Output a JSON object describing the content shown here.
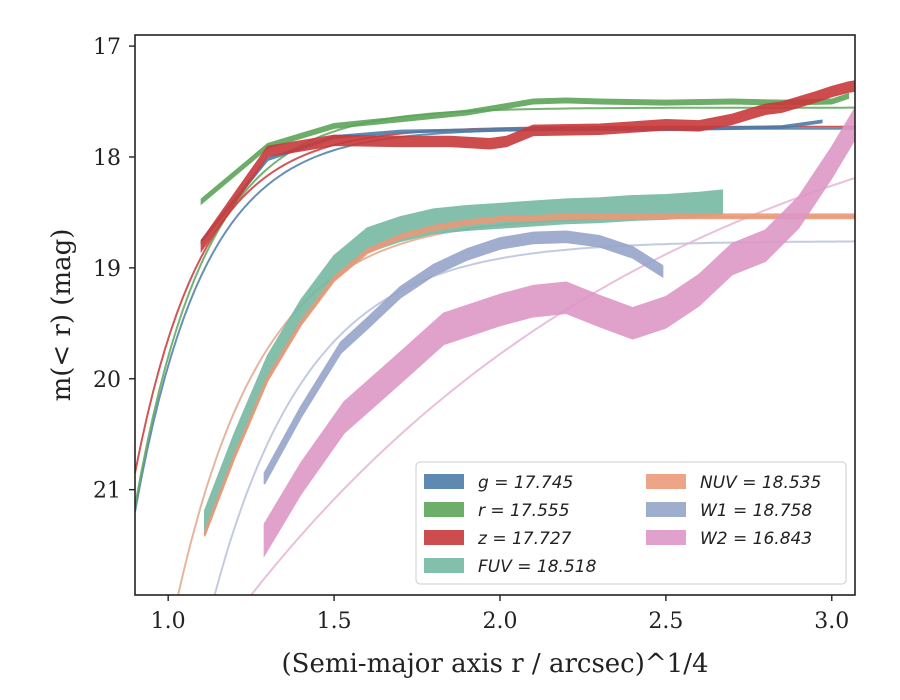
{
  "chart_data": {
    "type": "line",
    "xlabel": "(Semi-major axis r / arcsec)^1/4",
    "ylabel": "m(< r) (mag)",
    "xlim": [
      0.9,
      3.07
    ],
    "ylim": [
      21.95,
      16.9
    ],
    "y_inverted": true,
    "x_ticks": [
      "1.0",
      "1.5",
      "2.0",
      "2.5",
      "3.0"
    ],
    "x_tick_values": [
      1.0,
      1.5,
      2.0,
      2.5,
      3.0
    ],
    "y_ticks": [
      "17",
      "18",
      "19",
      "20",
      "21"
    ],
    "y_tick_values": [
      17,
      18,
      19,
      20,
      21
    ],
    "grid": false,
    "legend_position": "lower-right",
    "series": [
      {
        "name": "g = 17.745",
        "color": "#4c7ca8",
        "data": [
          [
            1.1,
            18.76
          ],
          [
            1.3,
            18.02
          ],
          [
            1.5,
            17.82
          ],
          [
            1.7,
            17.77
          ],
          [
            1.9,
            17.76
          ],
          [
            2.1,
            17.75
          ],
          [
            2.3,
            17.75
          ],
          [
            2.5,
            17.75
          ],
          [
            2.7,
            17.74
          ],
          [
            2.85,
            17.73
          ],
          [
            2.97,
            17.68
          ]
        ],
        "band_width": 0.02
      },
      {
        "name": "r = 17.555",
        "color": "#5da55a",
        "data": [
          [
            1.1,
            18.4
          ],
          [
            1.3,
            17.9
          ],
          [
            1.5,
            17.72
          ],
          [
            1.7,
            17.66
          ],
          [
            1.9,
            17.6
          ],
          [
            2.0,
            17.55
          ],
          [
            2.1,
            17.5
          ],
          [
            2.2,
            17.49
          ],
          [
            2.3,
            17.5
          ],
          [
            2.5,
            17.51
          ],
          [
            2.7,
            17.5
          ],
          [
            2.85,
            17.51
          ],
          [
            3.0,
            17.5
          ],
          [
            3.05,
            17.45
          ]
        ],
        "band_width": 0.04
      },
      {
        "name": "z = 17.727",
        "color": "#c83a3b",
        "data": [
          [
            1.1,
            18.8
          ],
          [
            1.3,
            17.95
          ],
          [
            1.5,
            17.85
          ],
          [
            1.7,
            17.86
          ],
          [
            1.85,
            17.86
          ],
          [
            1.97,
            17.88
          ],
          [
            2.02,
            17.86
          ],
          [
            2.1,
            17.76
          ],
          [
            2.3,
            17.75
          ],
          [
            2.5,
            17.71
          ],
          [
            2.6,
            17.72
          ],
          [
            2.7,
            17.66
          ],
          [
            2.8,
            17.57
          ],
          [
            2.85,
            17.55
          ],
          [
            2.95,
            17.46
          ],
          [
            3.0,
            17.41
          ],
          [
            3.05,
            17.37
          ],
          [
            3.07,
            17.36
          ]
        ],
        "band_width": 0.09
      },
      {
        "name": "FUV = 18.518",
        "color": "#76b9a2",
        "data": [
          [
            1.11,
            21.3
          ],
          [
            1.2,
            20.6
          ],
          [
            1.3,
            19.9
          ],
          [
            1.4,
            19.4
          ],
          [
            1.5,
            19.0
          ],
          [
            1.6,
            18.75
          ],
          [
            1.7,
            18.65
          ],
          [
            1.8,
            18.58
          ],
          [
            1.9,
            18.55
          ],
          [
            2.0,
            18.53
          ],
          [
            2.1,
            18.51
          ],
          [
            2.2,
            18.49
          ],
          [
            2.3,
            18.48
          ],
          [
            2.4,
            18.46
          ],
          [
            2.5,
            18.45
          ],
          [
            2.6,
            18.43
          ],
          [
            2.67,
            18.41
          ]
        ],
        "band_width": 0.22
      },
      {
        "name": "NUV = 18.535",
        "color": "#eb9a7a",
        "data": [
          [
            1.11,
            21.4
          ],
          [
            1.2,
            20.7
          ],
          [
            1.3,
            20.0
          ],
          [
            1.4,
            19.5
          ],
          [
            1.5,
            19.1
          ],
          [
            1.6,
            18.85
          ],
          [
            1.7,
            18.72
          ],
          [
            1.8,
            18.64
          ],
          [
            1.9,
            18.59
          ],
          [
            2.0,
            18.56
          ],
          [
            2.2,
            18.54
          ],
          [
            2.5,
            18.535
          ],
          [
            3.07,
            18.535
          ]
        ],
        "band_width": 0.04
      },
      {
        "name": "W1 = 18.758",
        "color": "#96a5c9",
        "data": [
          [
            1.29,
            20.9
          ],
          [
            1.4,
            20.3
          ],
          [
            1.52,
            19.72
          ],
          [
            1.6,
            19.5
          ],
          [
            1.7,
            19.22
          ],
          [
            1.8,
            19.02
          ],
          [
            1.9,
            18.88
          ],
          [
            2.0,
            18.78
          ],
          [
            2.1,
            18.73
          ],
          [
            2.2,
            18.72
          ],
          [
            2.3,
            18.76
          ],
          [
            2.4,
            18.86
          ],
          [
            2.49,
            19.03
          ]
        ],
        "band_width": 0.1
      },
      {
        "name": "W2 = 16.843",
        "color": "#dd97c6",
        "data": [
          [
            1.29,
            21.45
          ],
          [
            1.4,
            20.9
          ],
          [
            1.53,
            20.35
          ],
          [
            1.7,
            19.9
          ],
          [
            1.83,
            19.55
          ],
          [
            2.0,
            19.38
          ],
          [
            2.1,
            19.3
          ],
          [
            2.2,
            19.27
          ],
          [
            2.3,
            19.39
          ],
          [
            2.4,
            19.5
          ],
          [
            2.5,
            19.4
          ],
          [
            2.6,
            19.2
          ],
          [
            2.7,
            18.92
          ],
          [
            2.8,
            18.8
          ],
          [
            2.9,
            18.5
          ],
          [
            3.0,
            18.05
          ],
          [
            3.07,
            17.7
          ]
        ],
        "band_width": 0.28
      }
    ],
    "model_curves": [
      {
        "color": "#4c7ca8",
        "asymptote": 17.745,
        "start_x": 0.9,
        "start_y": 21.2,
        "rate": 4.8
      },
      {
        "color": "#5da55a",
        "asymptote": 17.555,
        "start_x": 0.9,
        "start_y": 21.15,
        "rate": 4.7
      },
      {
        "color": "#c83a3b",
        "asymptote": 17.727,
        "start_x": 0.9,
        "start_y": 20.85,
        "rate": 4.9
      },
      {
        "color": "#e0a98e",
        "asymptote": 18.535,
        "start_x": 1.03,
        "start_y": 21.95,
        "rate": 3.9
      },
      {
        "color": "#b9c2da",
        "asymptote": 18.758,
        "start_x": 1.14,
        "start_y": 21.95,
        "rate": 3.5
      },
      {
        "color": "#e6b4d5",
        "asymptote": 16.9,
        "start_x": 1.25,
        "start_y": 21.95,
        "rate": 0.75
      }
    ]
  }
}
